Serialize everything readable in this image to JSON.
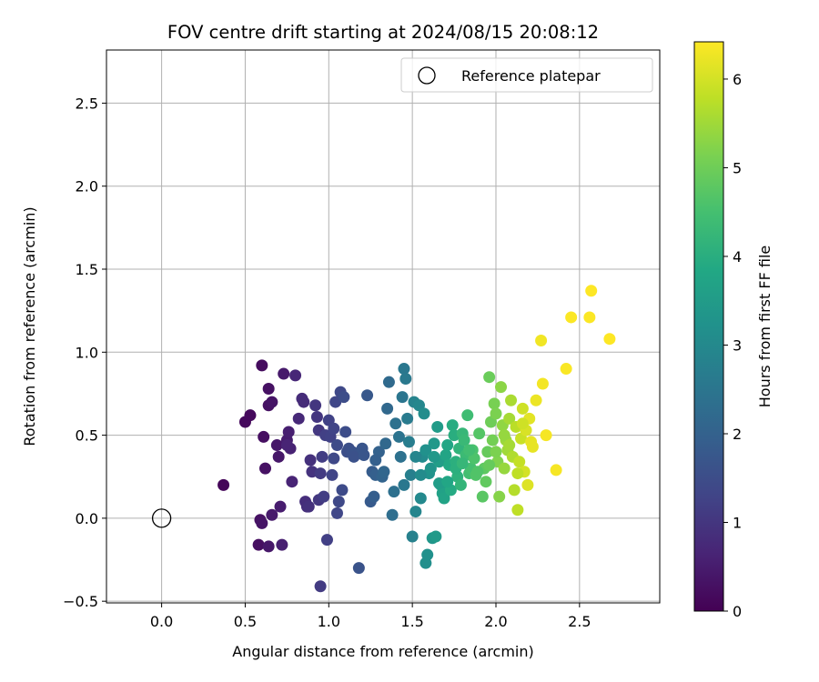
{
  "chart_data": {
    "type": "scatter",
    "title": "FOV centre drift starting at 2024/08/15 20:08:12",
    "xlabel": "Angular distance from reference (arcmin)",
    "ylabel": "Rotation from reference (arcmin)",
    "xlim": [
      -0.33,
      2.98
    ],
    "ylim": [
      -0.51,
      2.82
    ],
    "xticks": [
      0.0,
      0.5,
      1.0,
      1.5,
      2.0,
      2.5
    ],
    "xtick_labels": [
      "0.0",
      "0.5",
      "1.0",
      "1.5",
      "2.0",
      "2.5"
    ],
    "yticks": [
      -0.5,
      0.0,
      0.5,
      1.0,
      1.5,
      2.0,
      2.5
    ],
    "ytick_labels": [
      "−0.5",
      "0.0",
      "0.5",
      "1.0",
      "1.5",
      "2.0",
      "2.5"
    ],
    "grid": true,
    "colormap": "viridis",
    "colorbar": {
      "label": "Hours from first FF file",
      "range": [
        0,
        6.42
      ],
      "ticks": [
        0,
        1,
        2,
        3,
        4,
        5,
        6
      ],
      "tick_labels": [
        "0",
        "1",
        "2",
        "3",
        "4",
        "5",
        "6"
      ]
    },
    "legend": {
      "placement": "upper right",
      "entries": [
        {
          "label": "Reference platepar",
          "marker": "open-circle",
          "color": "#000000"
        }
      ]
    },
    "reference_point": {
      "x": 0.0,
      "y": 0.0
    },
    "points": [
      [
        0.37,
        0.2,
        0.1
      ],
      [
        0.5,
        0.58,
        0.15
      ],
      [
        0.53,
        0.62,
        0.15
      ],
      [
        0.6,
        0.92,
        0.2
      ],
      [
        0.61,
        0.49,
        0.25
      ],
      [
        0.62,
        0.3,
        0.3
      ],
      [
        0.64,
        0.78,
        0.3
      ],
      [
        0.64,
        0.68,
        0.3
      ],
      [
        0.66,
        0.7,
        0.35
      ],
      [
        0.69,
        0.44,
        0.4
      ],
      [
        0.7,
        0.37,
        0.4
      ],
      [
        0.73,
        0.87,
        0.45
      ],
      [
        0.75,
        0.47,
        0.5
      ],
      [
        0.76,
        0.52,
        0.55
      ],
      [
        0.77,
        0.42,
        0.6
      ],
      [
        0.58,
        -0.16,
        0.25
      ],
      [
        0.59,
        -0.01,
        0.3
      ],
      [
        0.6,
        -0.03,
        0.35
      ],
      [
        0.64,
        -0.17,
        0.4
      ],
      [
        0.66,
        0.02,
        0.45
      ],
      [
        0.71,
        0.07,
        0.5
      ],
      [
        0.72,
        -0.16,
        0.55
      ],
      [
        0.75,
        0.44,
        0.65
      ],
      [
        0.78,
        0.22,
        0.65
      ],
      [
        0.8,
        0.86,
        0.7
      ],
      [
        0.82,
        0.6,
        0.75
      ],
      [
        0.84,
        0.72,
        0.8
      ],
      [
        0.85,
        0.7,
        0.8
      ],
      [
        0.86,
        0.1,
        0.85
      ],
      [
        0.87,
        0.07,
        0.85
      ],
      [
        0.88,
        0.07,
        0.9
      ],
      [
        0.89,
        0.35,
        0.9
      ],
      [
        0.9,
        0.28,
        0.95
      ],
      [
        0.92,
        0.68,
        1.0
      ],
      [
        0.93,
        0.61,
        1.0
      ],
      [
        0.94,
        0.53,
        1.05
      ],
      [
        0.94,
        0.11,
        1.05
      ],
      [
        0.95,
        0.27,
        1.1
      ],
      [
        0.95,
        -0.41,
        1.1
      ],
      [
        0.96,
        0.37,
        1.15
      ],
      [
        0.97,
        0.13,
        1.15
      ],
      [
        0.98,
        0.5,
        1.2
      ],
      [
        0.99,
        -0.13,
        1.2
      ],
      [
        1.0,
        0.59,
        1.25
      ],
      [
        1.01,
        0.49,
        1.25
      ],
      [
        1.02,
        0.26,
        1.3
      ],
      [
        1.03,
        0.54,
        1.3
      ],
      [
        1.04,
        0.7,
        1.35
      ],
      [
        1.05,
        0.03,
        1.35
      ],
      [
        1.06,
        0.1,
        1.4
      ],
      [
        1.07,
        0.76,
        1.4
      ],
      [
        1.08,
        0.17,
        1.45
      ],
      [
        1.09,
        0.73,
        1.5
      ],
      [
        1.1,
        0.52,
        1.5
      ],
      [
        1.11,
        0.4,
        1.55
      ],
      [
        1.12,
        0.42,
        1.55
      ],
      [
        1.14,
        0.4,
        1.6
      ],
      [
        1.16,
        0.39,
        1.65
      ],
      [
        1.18,
        -0.3,
        1.65
      ],
      [
        1.2,
        0.42,
        1.7
      ],
      [
        1.23,
        0.74,
        1.75
      ],
      [
        1.25,
        0.1,
        1.8
      ],
      [
        1.26,
        0.28,
        1.85
      ],
      [
        1.27,
        0.13,
        1.9
      ],
      [
        1.28,
        0.26,
        1.95
      ],
      [
        1.3,
        0.4,
        2.0
      ],
      [
        1.32,
        0.25,
        2.05
      ],
      [
        1.33,
        0.28,
        2.1
      ],
      [
        1.35,
        0.66,
        2.15
      ],
      [
        1.36,
        0.82,
        2.2
      ],
      [
        1.38,
        0.02,
        2.3
      ],
      [
        1.39,
        0.16,
        2.35
      ],
      [
        1.4,
        0.57,
        2.4
      ],
      [
        1.42,
        0.49,
        2.45
      ],
      [
        1.44,
        0.73,
        2.5
      ],
      [
        1.45,
        0.9,
        2.55
      ],
      [
        1.46,
        0.84,
        2.6
      ],
      [
        1.47,
        0.6,
        2.65
      ],
      [
        1.48,
        0.46,
        2.7
      ],
      [
        1.49,
        0.26,
        2.75
      ],
      [
        1.5,
        -0.11,
        2.8
      ],
      [
        1.51,
        0.7,
        2.85
      ],
      [
        1.52,
        0.04,
        2.9
      ],
      [
        1.54,
        0.68,
        2.95
      ],
      [
        1.55,
        0.12,
        3.0
      ],
      [
        1.56,
        0.37,
        3.05
      ],
      [
        1.57,
        0.63,
        3.1
      ],
      [
        1.58,
        -0.27,
        3.15
      ],
      [
        1.59,
        -0.22,
        3.2
      ],
      [
        1.6,
        0.27,
        3.25
      ],
      [
        1.61,
        0.3,
        3.3
      ],
      [
        1.62,
        -0.12,
        3.35
      ],
      [
        1.63,
        0.45,
        3.4
      ],
      [
        1.64,
        -0.11,
        3.45
      ],
      [
        1.65,
        0.55,
        3.5
      ],
      [
        1.66,
        0.34,
        3.55
      ],
      [
        1.67,
        0.2,
        3.6
      ],
      [
        1.68,
        0.15,
        3.65
      ],
      [
        1.69,
        0.12,
        3.7
      ],
      [
        1.7,
        0.38,
        3.75
      ],
      [
        1.71,
        0.44,
        3.8
      ],
      [
        1.72,
        0.32,
        3.85
      ],
      [
        1.73,
        0.17,
        3.9
      ],
      [
        1.74,
        0.56,
        3.95
      ],
      [
        1.75,
        0.5,
        4.0
      ],
      [
        1.76,
        0.34,
        4.05
      ],
      [
        1.77,
        0.25,
        4.1
      ],
      [
        1.78,
        0.42,
        4.15
      ],
      [
        1.79,
        0.2,
        4.2
      ],
      [
        1.8,
        0.51,
        4.25
      ],
      [
        1.81,
        0.47,
        4.3
      ],
      [
        1.82,
        0.38,
        4.35
      ],
      [
        1.83,
        0.62,
        4.4
      ],
      [
        1.84,
        0.27,
        4.45
      ],
      [
        1.85,
        0.3,
        4.5
      ],
      [
        1.86,
        0.41,
        4.55
      ],
      [
        1.87,
        0.36,
        4.6
      ],
      [
        1.88,
        0.26,
        4.65
      ],
      [
        1.9,
        0.51,
        4.7
      ],
      [
        1.92,
        0.13,
        4.75
      ],
      [
        1.93,
        0.3,
        4.8
      ],
      [
        1.94,
        0.22,
        4.85
      ],
      [
        1.95,
        0.4,
        4.9
      ],
      [
        1.96,
        0.85,
        4.95
      ],
      [
        1.97,
        0.58,
        5.0
      ],
      [
        1.98,
        0.47,
        5.05
      ],
      [
        1.99,
        0.69,
        5.1
      ],
      [
        2.0,
        0.63,
        5.15
      ],
      [
        2.01,
        0.34,
        5.2
      ],
      [
        2.02,
        0.13,
        5.25
      ],
      [
        2.03,
        0.79,
        5.3
      ],
      [
        2.04,
        0.56,
        5.35
      ],
      [
        2.05,
        0.3,
        5.4
      ],
      [
        2.06,
        0.47,
        5.45
      ],
      [
        2.07,
        0.41,
        5.5
      ],
      [
        2.08,
        0.6,
        5.55
      ],
      [
        2.09,
        0.71,
        5.6
      ],
      [
        2.1,
        0.37,
        5.65
      ],
      [
        2.11,
        0.17,
        5.7
      ],
      [
        2.12,
        0.55,
        5.75
      ],
      [
        2.13,
        0.05,
        5.8
      ],
      [
        2.14,
        0.34,
        5.85
      ],
      [
        2.15,
        0.48,
        5.9
      ],
      [
        2.16,
        0.66,
        5.95
      ],
      [
        2.17,
        0.28,
        6.0
      ],
      [
        2.18,
        0.53,
        6.05
      ],
      [
        2.19,
        0.2,
        6.1
      ],
      [
        2.2,
        0.6,
        6.15
      ],
      [
        2.22,
        0.43,
        6.2
      ],
      [
        2.24,
        0.71,
        6.25
      ],
      [
        2.27,
        1.07,
        6.3
      ],
      [
        2.28,
        0.81,
        6.32
      ],
      [
        2.3,
        0.5,
        6.35
      ],
      [
        2.36,
        0.29,
        6.35
      ],
      [
        2.42,
        0.9,
        6.38
      ],
      [
        2.45,
        1.21,
        6.4
      ],
      [
        2.56,
        1.21,
        6.4
      ],
      [
        2.57,
        1.37,
        6.42
      ],
      [
        2.68,
        1.08,
        6.42
      ],
      [
        1.03,
        0.36,
        1.4
      ],
      [
        1.05,
        0.44,
        1.45
      ],
      [
        1.15,
        0.37,
        1.6
      ],
      [
        1.21,
        0.38,
        1.7
      ],
      [
        1.28,
        0.35,
        1.95
      ],
      [
        1.34,
        0.45,
        2.15
      ],
      [
        1.43,
        0.37,
        2.4
      ],
      [
        1.45,
        0.2,
        2.55
      ],
      [
        1.52,
        0.37,
        2.9
      ],
      [
        1.55,
        0.26,
        3.05
      ],
      [
        1.58,
        0.41,
        3.2
      ],
      [
        1.63,
        0.37,
        3.4
      ],
      [
        1.66,
        0.21,
        3.55
      ],
      [
        1.71,
        0.22,
        3.8
      ],
      [
        1.76,
        0.3,
        4.05
      ],
      [
        1.8,
        0.33,
        4.25
      ],
      [
        1.84,
        0.41,
        4.45
      ],
      [
        1.89,
        0.28,
        4.65
      ],
      [
        1.96,
        0.32,
        4.9
      ],
      [
        2.0,
        0.4,
        5.15
      ],
      [
        2.05,
        0.5,
        5.4
      ],
      [
        2.08,
        0.44,
        5.55
      ],
      [
        2.13,
        0.27,
        5.8
      ],
      [
        2.16,
        0.57,
        5.95
      ],
      [
        2.21,
        0.46,
        6.2
      ]
    ]
  }
}
